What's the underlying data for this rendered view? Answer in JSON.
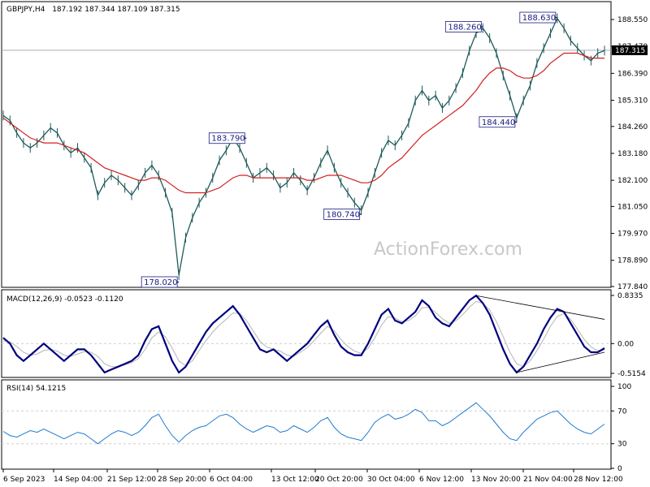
{
  "header": {
    "symbol": "GBPJPY,H4",
    "ohlc": "187.192 187.344 187.109 187.315",
    "macd_label": "MACD(12,26,9) -0.0523 -0.1120",
    "rsi_label": "RSI(14) 54.1215"
  },
  "watermark": "ActionForex.com",
  "colors": {
    "price": "#1e5a5a",
    "ma": "#d02020",
    "macd": "#000080",
    "signal": "#b4b4b4",
    "rsi": "#1e7ad2",
    "grid": "#cfcfcf",
    "trend": "#000000",
    "callout": "#1a1a80"
  },
  "chart_data": [
    {
      "type": "line",
      "panel": "price",
      "y_ticks": [
        "188.550",
        "187.470",
        "186.390",
        "185.310",
        "184.260",
        "183.180",
        "182.100",
        "181.050",
        "179.970",
        "178.890",
        "177.840"
      ],
      "y_range": [
        177.84,
        188.55
      ],
      "current_price": "187.315",
      "x_ticks": [
        "6 Sep 2023",
        "14 Sep 04:00",
        "21 Sep 12:00",
        "28 Sep 20:00",
        "6 Oct 04:00",
        "13 Oct 12:00",
        "20 Oct 20:00",
        "30 Oct 04:00",
        "6 Nov 12:00",
        "13 Nov 20:00",
        "21 Nov 04:00",
        "28 Nov 12:00"
      ],
      "series": [
        {
          "y": [
            184.7,
            184.5,
            184.0,
            183.6,
            183.4,
            183.6,
            183.9,
            184.2,
            184.0,
            183.5,
            183.2,
            183.4,
            183.0,
            182.6,
            181.5,
            182.0,
            182.3,
            182.1,
            181.8,
            181.5,
            181.9,
            182.4,
            182.7,
            182.3,
            181.6,
            180.8,
            178.3,
            179.8,
            180.6,
            181.2,
            181.6,
            182.2,
            182.9,
            183.3,
            183.8,
            183.4,
            182.8,
            182.2,
            182.4,
            182.6,
            182.3,
            181.8,
            182.0,
            182.4,
            182.1,
            181.7,
            182.2,
            182.8,
            183.3,
            182.6,
            182.0,
            181.6,
            181.2,
            180.9,
            181.6,
            182.4,
            183.2,
            183.7,
            183.5,
            183.9,
            184.4,
            185.3,
            185.7,
            185.3,
            185.5,
            185.0,
            185.3,
            185.8,
            186.4,
            187.3,
            188.0,
            188.2,
            187.8,
            187.2,
            186.3,
            185.5,
            184.6,
            185.3,
            185.9,
            186.8,
            187.4,
            188.0,
            188.6,
            188.2,
            187.7,
            187.4,
            187.1,
            186.9,
            187.2,
            187.3
          ]
        },
        {
          "y": [
            184.6,
            184.4,
            184.2,
            184.0,
            183.8,
            183.7,
            183.6,
            183.6,
            183.6,
            183.5,
            183.4,
            183.3,
            183.2,
            183.0,
            182.8,
            182.6,
            182.5,
            182.4,
            182.3,
            182.2,
            182.1,
            182.1,
            182.2,
            182.2,
            182.1,
            181.9,
            181.7,
            181.6,
            181.6,
            181.6,
            181.6,
            181.7,
            181.8,
            182.0,
            182.2,
            182.3,
            182.3,
            182.2,
            182.2,
            182.2,
            182.2,
            182.2,
            182.2,
            182.2,
            182.2,
            182.1,
            182.1,
            182.2,
            182.3,
            182.3,
            182.3,
            182.2,
            182.1,
            182.0,
            182.0,
            182.1,
            182.3,
            182.6,
            182.8,
            183.0,
            183.3,
            183.6,
            183.9,
            184.1,
            184.3,
            184.5,
            184.7,
            184.9,
            185.1,
            185.4,
            185.7,
            186.1,
            186.4,
            186.6,
            186.6,
            186.5,
            186.3,
            186.2,
            186.2,
            186.3,
            186.5,
            186.8,
            187.0,
            187.2,
            187.2,
            187.2,
            187.1,
            187.0,
            187.0,
            187.0
          ]
        }
      ],
      "annotations": [
        {
          "text": "183.790",
          "value": 183.79,
          "bar": 36
        },
        {
          "text": "178.020",
          "value": 178.02,
          "bar": 26
        },
        {
          "text": "180.740",
          "value": 180.74,
          "bar": 53
        },
        {
          "text": "188.260",
          "value": 188.26,
          "bar": 71
        },
        {
          "text": "184.440",
          "value": 184.44,
          "bar": 76
        },
        {
          "text": "188.630",
          "value": 188.63,
          "bar": 82
        }
      ]
    },
    {
      "type": "line",
      "panel": "macd",
      "y_ticks": [
        "0.8335",
        "0.00",
        "-0.5154"
      ],
      "y_range": [
        -0.5154,
        0.8335
      ],
      "series": [
        {
          "y": [
            0.1,
            0.0,
            -0.2,
            -0.3,
            -0.2,
            -0.1,
            0.0,
            -0.1,
            -0.2,
            -0.3,
            -0.2,
            -0.1,
            -0.1,
            -0.2,
            -0.35,
            -0.5,
            -0.45,
            -0.4,
            -0.35,
            -0.3,
            -0.2,
            0.05,
            0.25,
            0.3,
            0.0,
            -0.3,
            -0.5,
            -0.4,
            -0.2,
            0.0,
            0.2,
            0.35,
            0.45,
            0.55,
            0.65,
            0.5,
            0.3,
            0.1,
            -0.1,
            -0.15,
            -0.1,
            -0.2,
            -0.3,
            -0.2,
            -0.1,
            0.0,
            0.15,
            0.3,
            0.4,
            0.15,
            -0.05,
            -0.15,
            -0.2,
            -0.2,
            0.0,
            0.25,
            0.5,
            0.6,
            0.4,
            0.35,
            0.45,
            0.55,
            0.75,
            0.65,
            0.45,
            0.35,
            0.3,
            0.45,
            0.6,
            0.75,
            0.83,
            0.7,
            0.5,
            0.2,
            -0.1,
            -0.35,
            -0.5,
            -0.4,
            -0.2,
            0.0,
            0.25,
            0.45,
            0.6,
            0.55,
            0.35,
            0.15,
            -0.05,
            -0.15,
            -0.15,
            -0.08
          ]
        },
        {
          "y": [
            0.05,
            0.03,
            -0.05,
            -0.15,
            -0.2,
            -0.18,
            -0.12,
            -0.1,
            -0.13,
            -0.2,
            -0.22,
            -0.18,
            -0.14,
            -0.15,
            -0.22,
            -0.35,
            -0.4,
            -0.4,
            -0.37,
            -0.33,
            -0.26,
            -0.1,
            0.1,
            0.2,
            0.12,
            -0.08,
            -0.3,
            -0.38,
            -0.3,
            -0.12,
            0.05,
            0.2,
            0.32,
            0.42,
            0.53,
            0.52,
            0.4,
            0.22,
            0.04,
            -0.06,
            -0.1,
            -0.13,
            -0.2,
            -0.22,
            -0.15,
            -0.07,
            0.05,
            0.18,
            0.3,
            0.22,
            0.07,
            -0.05,
            -0.13,
            -0.17,
            -0.08,
            0.1,
            0.32,
            0.47,
            0.44,
            0.38,
            0.4,
            0.48,
            0.62,
            0.63,
            0.54,
            0.43,
            0.35,
            0.4,
            0.5,
            0.63,
            0.73,
            0.7,
            0.58,
            0.38,
            0.12,
            -0.15,
            -0.35,
            -0.4,
            -0.3,
            -0.12,
            0.08,
            0.3,
            0.47,
            0.52,
            0.42,
            0.25,
            0.07,
            -0.06,
            -0.12,
            -0.11
          ]
        }
      ]
    },
    {
      "type": "line",
      "panel": "rsi",
      "y_ticks": [
        "100",
        "70",
        "30",
        "0"
      ],
      "y_range": [
        0,
        100
      ],
      "levels": [
        70,
        30
      ],
      "series": [
        {
          "y": [
            45,
            40,
            38,
            42,
            46,
            44,
            48,
            44,
            40,
            36,
            40,
            44,
            42,
            36,
            30,
            36,
            42,
            46,
            44,
            40,
            44,
            52,
            62,
            66,
            52,
            40,
            32,
            40,
            46,
            50,
            52,
            58,
            64,
            66,
            62,
            54,
            48,
            44,
            48,
            52,
            50,
            44,
            46,
            52,
            48,
            44,
            50,
            58,
            62,
            50,
            42,
            38,
            36,
            34,
            44,
            56,
            62,
            66,
            60,
            62,
            66,
            72,
            68,
            58,
            58,
            52,
            56,
            62,
            68,
            74,
            80,
            72,
            64,
            54,
            44,
            36,
            34,
            44,
            52,
            60,
            64,
            68,
            70,
            62,
            54,
            48,
            44,
            42,
            48,
            54
          ]
        }
      ]
    }
  ]
}
